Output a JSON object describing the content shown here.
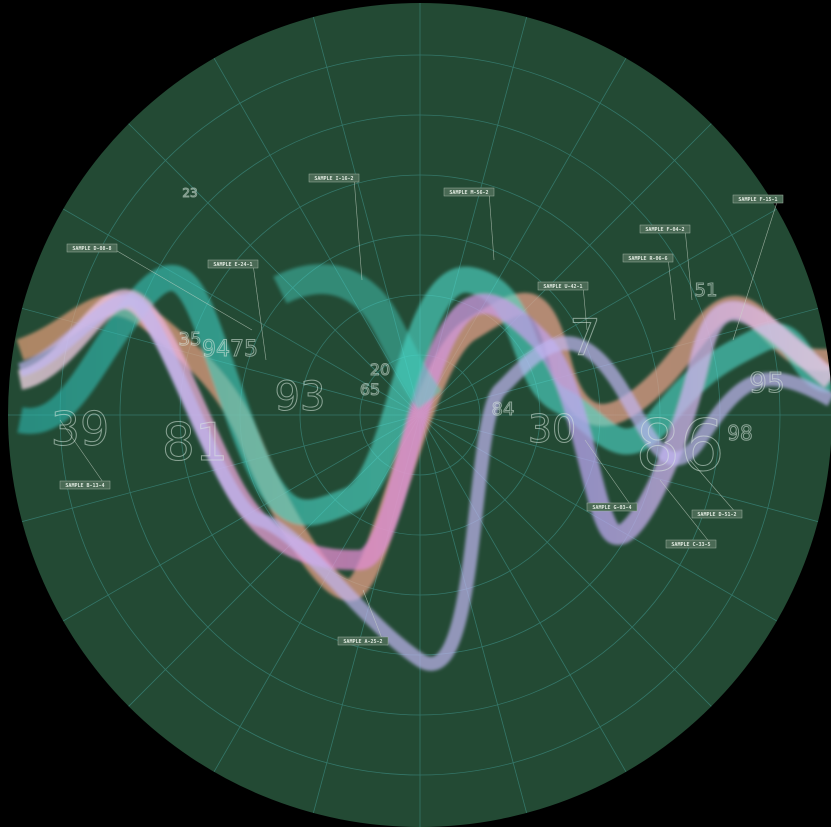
{
  "labels": [
    "SAMPLE D-08-8",
    "SAMPLE E-24-1",
    "SAMPLE I-16-2",
    "SAMPLE M-56-2",
    "SAMPLE U-42-1",
    "SAMPLE F-04-2",
    "SAMPLE R-06-6",
    "SAMPLE F-15-1",
    "SAMPLE B-13-4",
    "SAMPLE G-03-4",
    "SAMPLE D-51-2",
    "SAMPLE C-33-5",
    "SAMPLE A-25-2"
  ],
  "numbers": [
    39,
    81,
    93,
    30,
    86,
    7,
    95,
    51,
    23,
    9475,
    35,
    98,
    65,
    20,
    84
  ]
}
